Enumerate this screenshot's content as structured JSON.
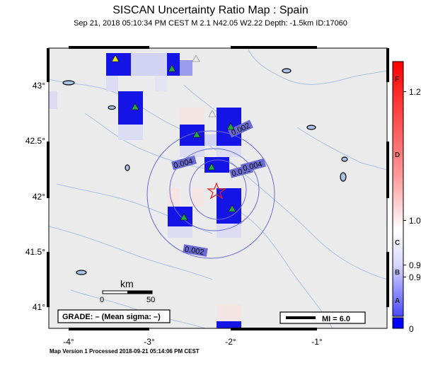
{
  "header": {
    "title": "SISCAN Uncertainty Ratio Map : Spain",
    "subtitle": "Sep 21, 2018 05:10:34 PM CEST   M 2.1    N42.05 W2.22    Depth: -1.5km    ID:17060"
  },
  "axes": {
    "lat_ticks": [
      "43°",
      "42.5°",
      "42°",
      "41.5°",
      "41°"
    ],
    "lon_ticks": [
      "-4°",
      "-3°",
      "-2°",
      "-1°"
    ]
  },
  "contours": {
    "labels": [
      "0.002",
      "0.004",
      "0.006",
      "0.004",
      "0.002"
    ]
  },
  "scale_bar": {
    "unit": "km",
    "ticks": [
      "0",
      "50"
    ]
  },
  "grade_box": {
    "text": "GRADE: – (Mean sigma: –)"
  },
  "mi_legend": {
    "text": "MI = 6.0"
  },
  "colorbar": {
    "letters": [
      "F",
      "D",
      "C",
      "B",
      "A"
    ],
    "values": [
      "1.2",
      "1.0",
      "0.9",
      "0.9",
      "0"
    ],
    "top_color": "#ff0000",
    "bottom_color": "#0000ff",
    "mid_color": "#ffffff"
  },
  "footer": {
    "text": "Map Version 1 Processed 2018-09-21 05:14:06 PM CEST"
  },
  "colors": {
    "land": "#ebebeb",
    "water": "#a9c3e6",
    "cell_blue": "#1414e6",
    "contour": "#6b6bd6",
    "station": "#22a844"
  }
}
